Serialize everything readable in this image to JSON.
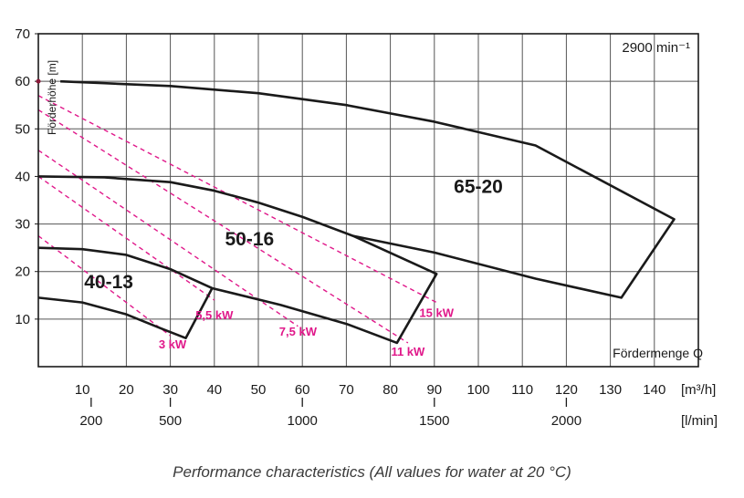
{
  "caption": "Performance characteristics (All values for water at 20 °C)",
  "chart_data": {
    "type": "line",
    "speed_label": "2900 min⁻¹",
    "ylabel": "Förderhöhe [m]",
    "xlabel": "Fördermenge Q",
    "y_ticks": [
      10,
      20,
      30,
      40,
      50,
      60,
      70
    ],
    "ylim": [
      0,
      70
    ],
    "x_unit_m3h": "[m³/h]",
    "x_unit_lmin": "[l/min]",
    "x_ticks_m3h": [
      10,
      20,
      30,
      40,
      50,
      60,
      70,
      80,
      90,
      100,
      110,
      120,
      130,
      140
    ],
    "xlim_m3h": [
      0,
      150
    ],
    "x_ticks_lmin": [
      200,
      500,
      1000,
      1500,
      2000
    ],
    "grid": true,
    "curve_color": "#1a1a1a",
    "power_color": "#e0188a",
    "pump_fields": [
      {
        "name": "40-13",
        "label_at": [
          16,
          16.5
        ],
        "points": [
          [
            0,
            14.5
          ],
          [
            10,
            13.5
          ],
          [
            20,
            11
          ],
          [
            28,
            8
          ],
          [
            33.5,
            6
          ],
          [
            39.5,
            16.5
          ],
          [
            30,
            20.5
          ],
          [
            20,
            23.5
          ],
          [
            10,
            24.7
          ],
          [
            0,
            25
          ]
        ]
      },
      {
        "name": "50-16",
        "label_at": [
          48,
          25.5
        ],
        "points": [
          [
            39.5,
            16.5
          ],
          [
            55,
            13
          ],
          [
            70,
            9
          ],
          [
            81.5,
            5
          ],
          [
            90.5,
            19.5
          ],
          [
            71.5,
            27.5
          ],
          [
            60,
            31.5
          ],
          [
            50,
            34.5
          ],
          [
            40,
            37
          ],
          [
            30,
            38.8
          ],
          [
            15,
            39.8
          ],
          [
            0,
            40
          ]
        ]
      },
      {
        "name": "65-20",
        "label_at": [
          100,
          36.5
        ],
        "points": [
          [
            71.5,
            27.5
          ],
          [
            90,
            24
          ],
          [
            113,
            18.5
          ],
          [
            132.5,
            14.5
          ],
          [
            144.5,
            31
          ],
          [
            113,
            46.5
          ],
          [
            90,
            51.5
          ],
          [
            70,
            55
          ],
          [
            50,
            57.5
          ],
          [
            30,
            59
          ],
          [
            15,
            59.6
          ],
          [
            5,
            60
          ]
        ]
      }
    ],
    "power_lines": [
      {
        "label": "3 kW",
        "label_at": [
          30.5,
          3.8
        ],
        "points": [
          [
            0,
            27.5
          ],
          [
            30,
            6.5
          ]
        ]
      },
      {
        "label": "5,5 kW",
        "label_at": [
          40,
          10
        ],
        "points": [
          [
            0,
            40
          ],
          [
            40,
            14
          ]
        ]
      },
      {
        "label": "7,5 kW",
        "label_at": [
          59,
          6.5
        ],
        "points": [
          [
            0,
            45.5
          ],
          [
            59,
            8.5
          ]
        ]
      },
      {
        "label": "11 kW",
        "label_at": [
          84,
          2.3
        ],
        "points": [
          [
            0,
            54
          ],
          [
            84,
            5
          ]
        ]
      },
      {
        "label": "15 kW",
        "label_at": [
          90.5,
          10.5
        ],
        "points": [
          [
            0,
            57
          ],
          [
            90.5,
            13.5
          ]
        ]
      }
    ]
  }
}
